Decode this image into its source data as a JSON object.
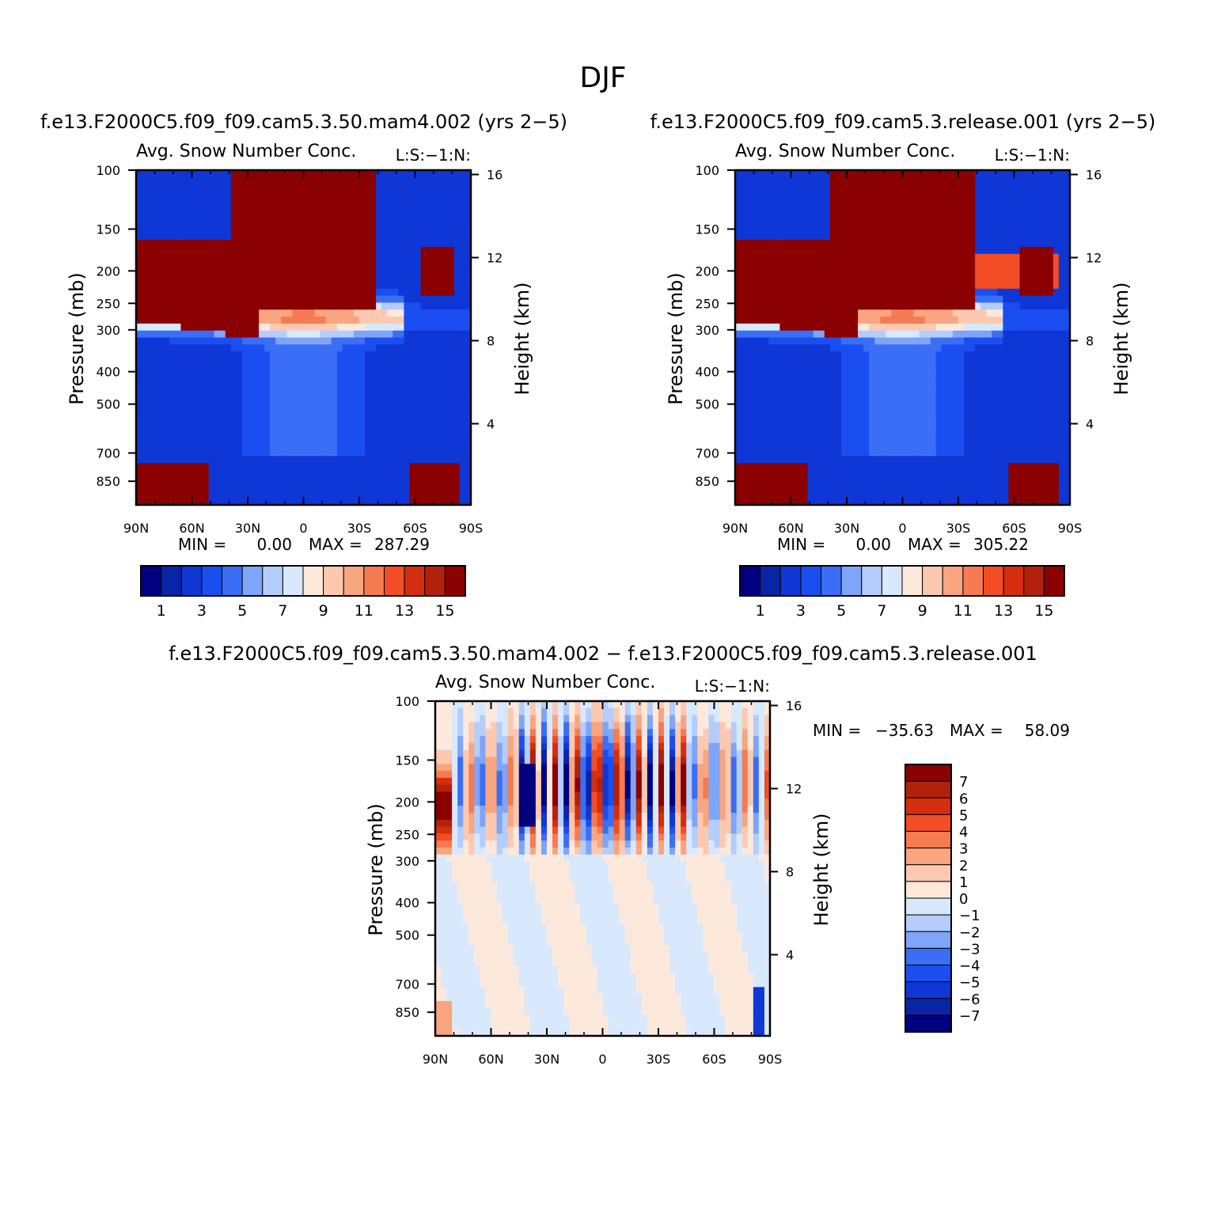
{
  "figure_title": "DJF",
  "colors": {
    "abs": [
      "#000080",
      "#0a24a8",
      "#0f37d6",
      "#1a4ef0",
      "#3a6ef5",
      "#7ea5f7",
      "#b4cdfb",
      "#d9e9fd",
      "#fde9dc",
      "#fcc9b0",
      "#f9a57f",
      "#f57b52",
      "#f24d24",
      "#d42e0e",
      "#b2220a",
      "#8b0000"
    ],
    "diff": [
      "#8b0000",
      "#b2220a",
      "#d42e0e",
      "#f24d24",
      "#f57b52",
      "#f9a57f",
      "#fcc9b0",
      "#fde9dc",
      "#d9e9fd",
      "#b4cdfb",
      "#7ea5f7",
      "#3a6ef5",
      "#1a4ef0",
      "#0f37d6",
      "#0a24a8",
      "#000080"
    ]
  },
  "panels": [
    {
      "id": "left",
      "case_title": "f.e13.F2000C5.f09_f09.cam5.3.50.mam4.002 (yrs 2−5)",
      "subtitle": "Avg. Snow Number Conc.",
      "units_label": "L:S:−1:N:",
      "ylabel": "Pressure (mb)",
      "y2label": "Height (km)",
      "min_label": "MIN =",
      "min_value": "0.00",
      "max_label": "MAX =",
      "max_value": "287.29"
    },
    {
      "id": "right",
      "case_title": "f.e13.F2000C5.f09_f09.cam5.3.release.001 (yrs 2−5)",
      "subtitle": "Avg. Snow Number Conc.",
      "units_label": "L:S:−1:N:",
      "ylabel": "Pressure (mb)",
      "y2label": "Height (km)",
      "min_label": "MIN =",
      "min_value": "0.00",
      "max_label": "MAX =",
      "max_value": "305.22"
    },
    {
      "id": "diff",
      "case_title": "f.e13.F2000C5.f09_f09.cam5.3.50.mam4.002 − f.e13.F2000C5.f09_f09.cam5.3.release.001",
      "subtitle": "Avg. Snow Number Conc.",
      "units_label": "L:S:−1:N:",
      "ylabel": "Pressure (mb)",
      "y2label": "Height (km)",
      "min_label": "MIN =",
      "min_value": "−35.63",
      "max_label": "MAX =",
      "max_value": "58.09"
    }
  ],
  "chart_data": [
    {
      "type": "heatmap",
      "title": "Avg. Snow Number Conc.",
      "case": "f.e13.F2000C5.f09_f09.cam5.3.50.mam4.002 (yrs 2−5)",
      "xlabel": "",
      "ylabel": "Pressure (mb)",
      "y2label": "Height (km)",
      "x_ticks": [
        "90N",
        "60N",
        "30N",
        "0",
        "30S",
        "60S",
        "90S"
      ],
      "y_ticks": [
        100,
        150,
        200,
        250,
        300,
        400,
        500,
        700,
        850
      ],
      "y2_ticks": [
        16,
        12,
        8,
        4
      ],
      "xlim": [
        90,
        -90
      ],
      "ylim": [
        100,
        1000
      ],
      "colorbar_labels": [
        "1",
        "3",
        "5",
        "7",
        "9",
        "11",
        "13",
        "15"
      ],
      "levels": 15,
      "min": 0.0,
      "max": 287.29
    },
    {
      "type": "heatmap",
      "title": "Avg. Snow Number Conc.",
      "case": "f.e13.F2000C5.f09_f09.cam5.3.release.001 (yrs 2−5)",
      "xlabel": "",
      "ylabel": "Pressure (mb)",
      "y2label": "Height (km)",
      "x_ticks": [
        "90N",
        "60N",
        "30N",
        "0",
        "30S",
        "60S",
        "90S"
      ],
      "y_ticks": [
        100,
        150,
        200,
        250,
        300,
        400,
        500,
        700,
        850
      ],
      "y2_ticks": [
        16,
        12,
        8,
        4
      ],
      "xlim": [
        90,
        -90
      ],
      "ylim": [
        100,
        1000
      ],
      "colorbar_labels": [
        "1",
        "3",
        "5",
        "7",
        "9",
        "11",
        "13",
        "15"
      ],
      "levels": 15,
      "min": 0.0,
      "max": 305.22
    },
    {
      "type": "heatmap",
      "title": "Avg. Snow Number Conc.",
      "case": "f.e13.F2000C5.f09_f09.cam5.3.50.mam4.002 − f.e13.F2000C5.f09_f09.cam5.3.release.001",
      "xlabel": "",
      "ylabel": "Pressure (mb)",
      "y2label": "Height (km)",
      "x_ticks": [
        "90N",
        "60N",
        "30N",
        "0",
        "30S",
        "60S",
        "90S"
      ],
      "y_ticks": [
        100,
        150,
        200,
        250,
        300,
        400,
        500,
        700,
        850
      ],
      "y2_ticks": [
        16,
        12,
        8,
        4
      ],
      "xlim": [
        90,
        -90
      ],
      "ylim": [
        100,
        1000
      ],
      "colorbar_labels": [
        "7",
        "6",
        "5",
        "4",
        "3",
        "2",
        "1",
        "0",
        "−1",
        "−2",
        "−3",
        "−4",
        "−5",
        "−6",
        "−7"
      ],
      "levels": [
        -7,
        -6,
        -5,
        -4,
        -3,
        -2,
        -1,
        0,
        1,
        2,
        3,
        4,
        5,
        6,
        7
      ],
      "min": -35.63,
      "max": 58.09
    }
  ]
}
